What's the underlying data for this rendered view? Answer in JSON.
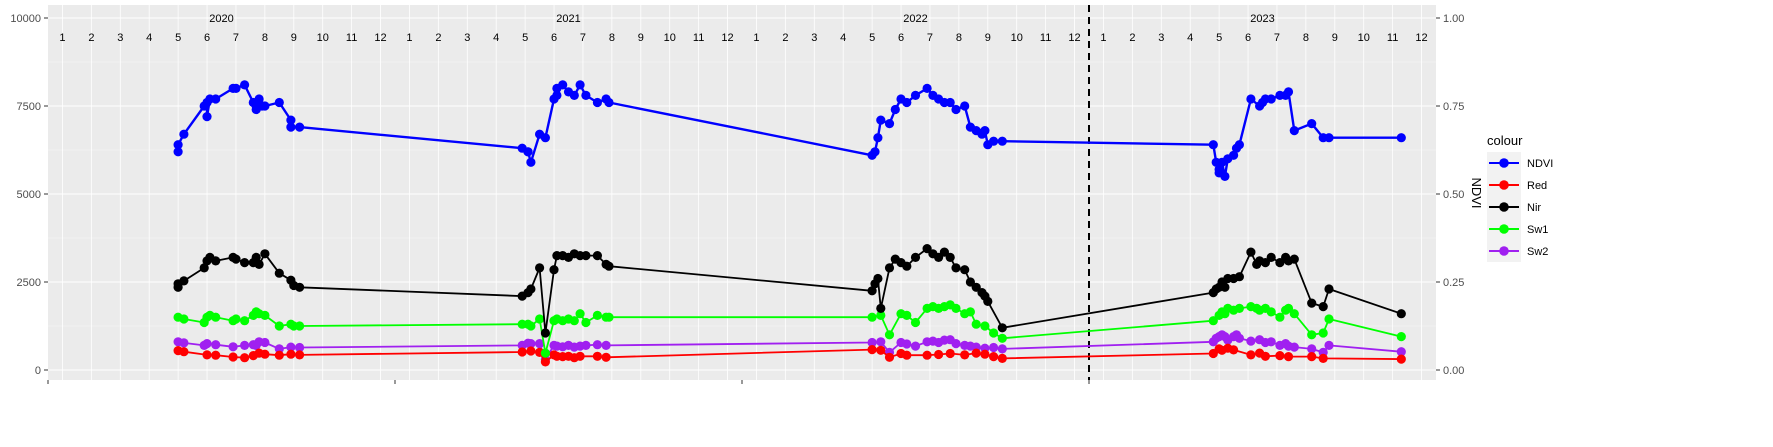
{
  "chart_data": {
    "type": "line",
    "title": "",
    "xlabel": "",
    "ylabel_left": "",
    "ylabel_right": "NDVI",
    "legend_title": "colour",
    "legend_position": "right",
    "grid": true,
    "panel_background": "#ebebeb",
    "x_unit": "month index (Jan 2020 = 1)",
    "xlim": [
      0.5,
      48.5
    ],
    "ylim_left": [
      0,
      10000
    ],
    "ylim_right": [
      0,
      1.0
    ],
    "year_labels": [
      {
        "label": "2020",
        "at": 6.5
      },
      {
        "label": "2021",
        "at": 18.5
      },
      {
        "label": "2022",
        "at": 30.5
      },
      {
        "label": "2023",
        "at": 42.5
      }
    ],
    "month_tick_labels": [
      "1",
      "2",
      "3",
      "4",
      "5",
      "6",
      "7",
      "8",
      "9",
      "10",
      "11",
      "12"
    ],
    "y_ticks_left": [
      "0",
      "2500",
      "5000",
      "7500",
      "10000"
    ],
    "y_ticks_right": [
      "0.00",
      "0.25",
      "0.50",
      "0.75",
      "1.00"
    ],
    "vline_x": 36.5,
    "series": [
      {
        "name": "NDVI",
        "color": "#0000ff",
        "axis": "right",
        "x": [
          5.0,
          5.0,
          5.2,
          5.9,
          6.0,
          6.0,
          6.1,
          6.3,
          6.9,
          7.0,
          7.3,
          7.6,
          7.7,
          7.7,
          7.8,
          7.9,
          8.0,
          8.5,
          8.9,
          8.9,
          9.2,
          16.9,
          17.1,
          17.1,
          17.2,
          17.5,
          17.7,
          18.0,
          18.1,
          18.1,
          18.3,
          18.5,
          18.7,
          18.9,
          19.1,
          19.5,
          19.8,
          19.9,
          29.0,
          29.1,
          29.2,
          29.3,
          29.6,
          29.8,
          30.0,
          30.2,
          30.5,
          30.9,
          31.1,
          31.3,
          31.5,
          31.7,
          31.9,
          32.2,
          32.4,
          32.6,
          32.8,
          32.9,
          33.0,
          33.2,
          33.5,
          40.8,
          40.9,
          41.0,
          41.0,
          41.1,
          41.2,
          41.3,
          41.5,
          41.6,
          41.7,
          42.1,
          42.4,
          42.5,
          42.6,
          42.8,
          43.1,
          43.3,
          43.4,
          43.6,
          44.2,
          44.6,
          44.8,
          47.3
        ],
        "values": [
          0.62,
          0.64,
          0.67,
          0.75,
          0.76,
          0.72,
          0.77,
          0.77,
          0.8,
          0.8,
          0.81,
          0.76,
          0.75,
          0.74,
          0.77,
          0.75,
          0.75,
          0.76,
          0.71,
          0.69,
          0.69,
          0.63,
          0.62,
          0.62,
          0.59,
          0.67,
          0.66,
          0.77,
          0.78,
          0.8,
          0.81,
          0.79,
          0.78,
          0.81,
          0.78,
          0.76,
          0.77,
          0.76,
          0.61,
          0.62,
          0.66,
          0.71,
          0.7,
          0.74,
          0.77,
          0.76,
          0.78,
          0.8,
          0.78,
          0.77,
          0.76,
          0.76,
          0.74,
          0.75,
          0.69,
          0.68,
          0.67,
          0.68,
          0.64,
          0.65,
          0.65,
          0.64,
          0.59,
          0.56,
          0.57,
          0.59,
          0.55,
          0.6,
          0.61,
          0.63,
          0.64,
          0.77,
          0.75,
          0.76,
          0.77,
          0.77,
          0.78,
          0.78,
          0.79,
          0.68,
          0.7,
          0.66,
          0.66,
          0.66
        ]
      },
      {
        "name": "Red",
        "color": "#ff0000",
        "axis": "left",
        "x": [
          5.0,
          5.2,
          6.0,
          6.3,
          6.9,
          7.3,
          7.6,
          7.8,
          8.0,
          8.5,
          8.9,
          9.2,
          16.9,
          17.2,
          17.5,
          17.7,
          18.0,
          18.1,
          18.3,
          18.5,
          18.7,
          18.9,
          19.5,
          19.8,
          29.0,
          29.3,
          29.6,
          30.0,
          30.2,
          30.9,
          31.3,
          31.7,
          32.2,
          32.6,
          32.9,
          33.2,
          33.5,
          40.8,
          41.0,
          41.1,
          41.3,
          41.5,
          42.1,
          42.4,
          42.6,
          43.1,
          43.4,
          44.2,
          44.6,
          47.3
        ],
        "values": [
          550,
          520,
          430,
          420,
          370,
          350,
          410,
          480,
          450,
          420,
          450,
          430,
          510,
          540,
          500,
          230,
          430,
          390,
          380,
          390,
          350,
          390,
          390,
          360,
          580,
          560,
          360,
          470,
          420,
          420,
          440,
          470,
          430,
          480,
          450,
          380,
          330,
          470,
          600,
          560,
          620,
          570,
          430,
          480,
          390,
          410,
          380,
          380,
          330,
          310
        ]
      },
      {
        "name": "Nir",
        "color": "#000000",
        "axis": "left",
        "x": [
          5.0,
          5.0,
          5.2,
          5.9,
          6.0,
          6.1,
          6.3,
          6.9,
          7.0,
          7.3,
          7.6,
          7.7,
          7.8,
          8.0,
          8.5,
          8.9,
          9.0,
          9.2,
          16.9,
          17.1,
          17.2,
          17.5,
          17.7,
          18.0,
          18.1,
          18.3,
          18.5,
          18.7,
          18.9,
          19.1,
          19.5,
          19.8,
          19.9,
          29.0,
          29.1,
          29.2,
          29.3,
          29.6,
          29.8,
          30.0,
          30.2,
          30.5,
          30.9,
          31.1,
          31.3,
          31.5,
          31.7,
          31.9,
          32.2,
          32.4,
          32.6,
          32.8,
          32.9,
          33.0,
          33.5,
          40.8,
          40.9,
          41.0,
          41.1,
          41.2,
          41.3,
          41.5,
          41.7,
          42.1,
          42.3,
          42.4,
          42.6,
          42.8,
          43.1,
          43.3,
          43.4,
          43.6,
          44.2,
          44.6,
          44.8,
          47.3
        ],
        "values": [
          2350,
          2450,
          2530,
          2900,
          3100,
          3200,
          3100,
          3200,
          3150,
          3050,
          3050,
          3200,
          3000,
          3300,
          2750,
          2550,
          2400,
          2350,
          2100,
          2200,
          2300,
          2900,
          1050,
          2850,
          3250,
          3250,
          3200,
          3300,
          3250,
          3250,
          3250,
          3000,
          2950,
          2250,
          2450,
          2600,
          1750,
          2900,
          3150,
          3050,
          2950,
          3200,
          3450,
          3300,
          3200,
          3350,
          3200,
          2900,
          2850,
          2500,
          2350,
          2200,
          2100,
          1950,
          1200,
          2200,
          2300,
          2350,
          2500,
          2350,
          2600,
          2600,
          2650,
          3350,
          3000,
          3100,
          3050,
          3200,
          3050,
          3200,
          3100,
          3150,
          1900,
          1800,
          2300,
          1600
        ]
      },
      {
        "name": "Sw1",
        "color": "#00ff00",
        "axis": "left",
        "x": [
          5.0,
          5.2,
          5.9,
          6.0,
          6.1,
          6.3,
          6.9,
          7.0,
          7.3,
          7.6,
          7.7,
          7.8,
          8.0,
          8.5,
          8.9,
          9.0,
          9.2,
          16.9,
          17.1,
          17.2,
          17.5,
          17.7,
          18.0,
          18.1,
          18.3,
          18.5,
          18.7,
          18.9,
          19.1,
          19.5,
          19.8,
          19.9,
          29.0,
          29.3,
          29.6,
          30.0,
          30.2,
          30.5,
          30.9,
          31.1,
          31.3,
          31.5,
          31.7,
          31.9,
          32.2,
          32.4,
          32.6,
          32.9,
          33.2,
          33.5,
          40.8,
          41.0,
          41.1,
          41.2,
          41.3,
          41.5,
          41.7,
          42.1,
          42.3,
          42.4,
          42.6,
          42.8,
          43.1,
          43.3,
          43.4,
          43.6,
          44.2,
          44.6,
          44.8,
          47.3
        ],
        "values": [
          1500,
          1450,
          1350,
          1500,
          1550,
          1500,
          1400,
          1450,
          1400,
          1550,
          1650,
          1600,
          1550,
          1250,
          1300,
          1250,
          1250,
          1300,
          1300,
          1250,
          1450,
          480,
          1400,
          1450,
          1400,
          1450,
          1400,
          1600,
          1350,
          1550,
          1500,
          1500,
          1500,
          1550,
          1000,
          1600,
          1550,
          1350,
          1750,
          1800,
          1750,
          1800,
          1850,
          1750,
          1600,
          1650,
          1300,
          1250,
          1050,
          900,
          1400,
          1550,
          1650,
          1600,
          1750,
          1700,
          1750,
          1800,
          1750,
          1700,
          1750,
          1650,
          1500,
          1700,
          1750,
          1600,
          1000,
          1050,
          1450,
          950
        ]
      },
      {
        "name": "Sw2",
        "color": "#a020f0",
        "axis": "left",
        "x": [
          5.0,
          5.2,
          5.9,
          6.0,
          6.3,
          6.9,
          7.3,
          7.6,
          7.7,
          7.8,
          8.0,
          8.5,
          8.9,
          9.2,
          16.9,
          17.1,
          17.2,
          17.5,
          17.7,
          18.0,
          18.1,
          18.3,
          18.5,
          18.7,
          18.9,
          19.1,
          19.5,
          19.8,
          29.0,
          29.3,
          29.6,
          30.0,
          30.2,
          30.5,
          30.9,
          31.1,
          31.3,
          31.5,
          31.7,
          31.9,
          32.2,
          32.4,
          32.6,
          32.9,
          33.2,
          33.5,
          40.8,
          40.9,
          41.0,
          41.1,
          41.2,
          41.3,
          41.5,
          41.6,
          41.7,
          42.1,
          42.4,
          42.6,
          42.8,
          43.1,
          43.3,
          43.4,
          43.6,
          44.2,
          44.6,
          44.8,
          47.3
        ],
        "values": [
          800,
          770,
          700,
          750,
          720,
          660,
          700,
          720,
          700,
          800,
          780,
          600,
          650,
          640,
          700,
          760,
          750,
          750,
          300,
          700,
          680,
          660,
          700,
          650,
          680,
          700,
          720,
          700,
          780,
          800,
          500,
          780,
          740,
          680,
          800,
          820,
          780,
          850,
          860,
          750,
          700,
          680,
          650,
          620,
          640,
          600,
          800,
          900,
          950,
          1000,
          950,
          850,
          950,
          1000,
          900,
          820,
          860,
          780,
          800,
          700,
          750,
          680,
          650,
          600,
          500,
          700,
          520
        ]
      }
    ]
  }
}
